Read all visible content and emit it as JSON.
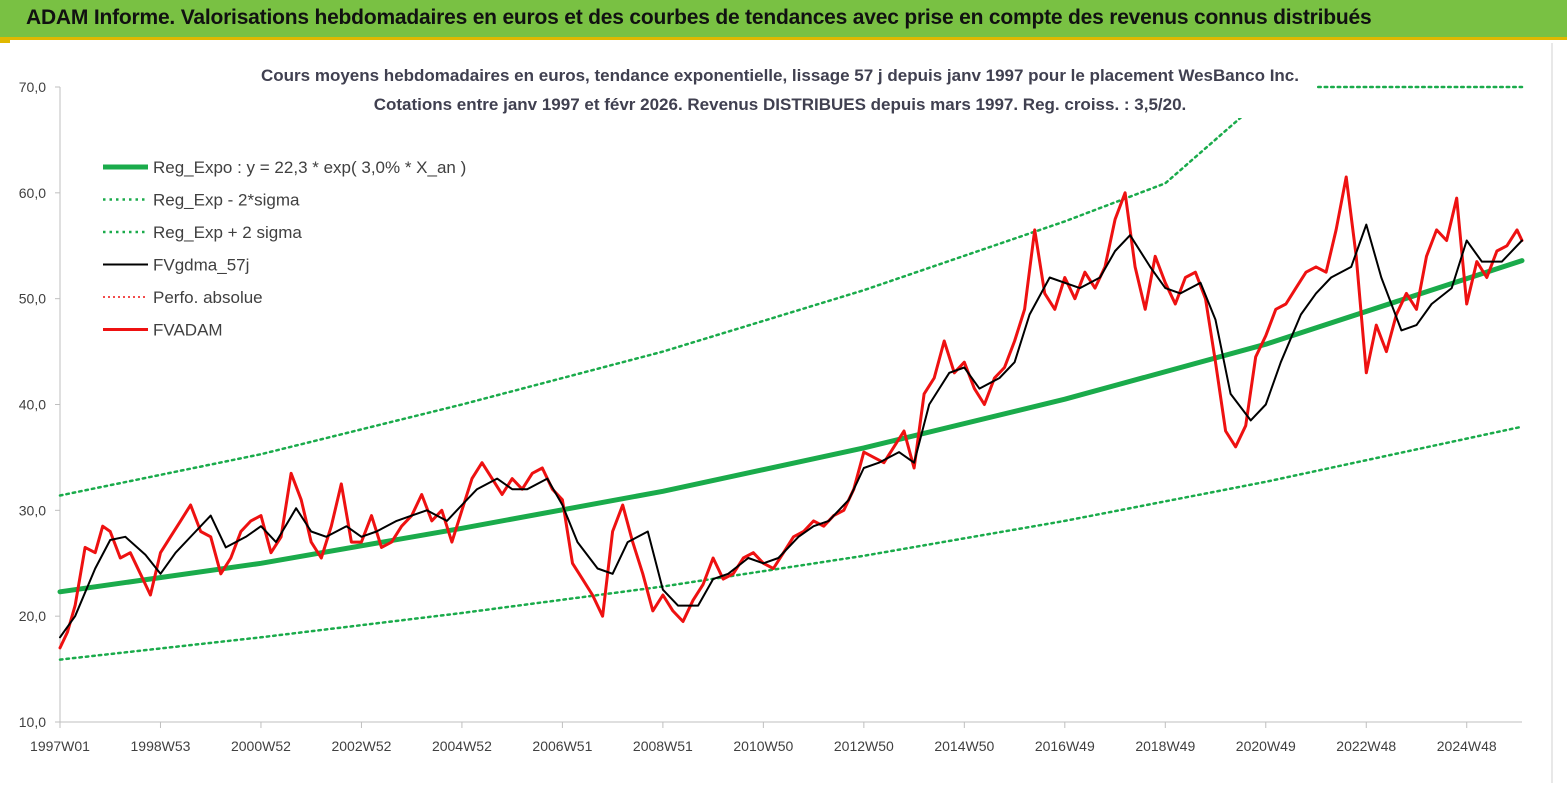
{
  "banner": {
    "title": "ADAM Informe. Valorisations hebdomadaires en euros et des courbes de tendances avec prise en compte des revenus connus distribués"
  },
  "colors": {
    "banner_bg": "#79c143",
    "trend": "#1aab4b",
    "band": "#1aab4b",
    "smooth": "#000000",
    "price": "#ee1111",
    "perf": "#ee1111"
  },
  "chart_data": {
    "type": "line",
    "title": "Cours moyens hebdomadaires en euros, tendance exponentielle, lissage 57 j depuis janv 1997 pour le placement WesBanco Inc.",
    "subtitle": "Cotations entre janv 1997 et févr 2026. Revenus DISTRIBUES depuis mars 1997. Reg. croiss. : 3,5/20.",
    "xlabel": "",
    "ylabel": "",
    "xlim": [
      1997.0,
      2026.1
    ],
    "ylim": [
      10,
      70
    ],
    "grid": false,
    "legend_position": "top-left",
    "y_ticks": [
      "10,0",
      "20,0",
      "30,0",
      "40,0",
      "50,0",
      "60,0",
      "70,0"
    ],
    "y_tick_values": [
      10,
      20,
      30,
      40,
      50,
      60,
      70
    ],
    "x_ticks": [
      "1997W01",
      "1998W53",
      "2000W52",
      "2002W52",
      "2004W52",
      "2006W51",
      "2008W51",
      "2010W50",
      "2012W50",
      "2014W50",
      "2016W49",
      "2018W49",
      "2020W49",
      "2022W48",
      "2024W48"
    ],
    "x_tick_values": [
      1997.0,
      1999.0,
      2001.0,
      2003.0,
      2005.0,
      2007.0,
      2009.0,
      2011.0,
      2013.0,
      2015.0,
      2017.0,
      2019.0,
      2021.0,
      2023.0,
      2025.0
    ],
    "series": [
      {
        "name": "Reg_Expo : y = 22,3 * exp( 3,0% *  X_an )",
        "style": "thick",
        "x": [
          1997.0,
          2001.0,
          2005.0,
          2009.0,
          2013.0,
          2017.0,
          2021.0,
          2026.1
        ],
        "y": [
          22.3,
          25.0,
          28.3,
          31.8,
          35.9,
          40.5,
          45.7,
          53.6
        ]
      },
      {
        "name": "Reg_Exp - 2*sigma",
        "style": "dotted",
        "x": [
          1997.0,
          2001.0,
          2005.0,
          2009.0,
          2013.0,
          2017.0,
          2021.0,
          2026.1
        ],
        "y": [
          15.9,
          18.0,
          20.3,
          22.8,
          25.7,
          29.0,
          32.7,
          37.9
        ]
      },
      {
        "name": "Reg_Exp + 2 sigma",
        "style": "dotted",
        "x": [
          1997.0,
          2001.0,
          2005.0,
          2009.0,
          2013.0,
          2017.0,
          2019.0,
          2021.2,
          2026.1
        ],
        "y": [
          31.4,
          35.3,
          40.0,
          45.0,
          50.8,
          57.3,
          60.9,
          70.0,
          70.0
        ]
      },
      {
        "name": "FVgdma_57j",
        "style": "solid",
        "x": [
          1997.0,
          1997.3,
          1997.7,
          1998.0,
          1998.3,
          1998.7,
          1999.0,
          1999.3,
          1999.7,
          2000.0,
          2000.3,
          2000.7,
          2001.0,
          2001.3,
          2001.7,
          2002.0,
          2002.3,
          2002.7,
          2003.0,
          2003.3,
          2003.7,
          2004.0,
          2004.3,
          2004.7,
          2005.0,
          2005.3,
          2005.7,
          2006.0,
          2006.3,
          2006.7,
          2007.0,
          2007.3,
          2007.7,
          2008.0,
          2008.3,
          2008.7,
          2009.0,
          2009.3,
          2009.7,
          2010.0,
          2010.3,
          2010.7,
          2011.0,
          2011.3,
          2011.7,
          2012.0,
          2012.3,
          2012.7,
          2013.0,
          2013.3,
          2013.7,
          2014.0,
          2014.3,
          2014.7,
          2015.0,
          2015.3,
          2015.7,
          2016.0,
          2016.3,
          2016.7,
          2017.0,
          2017.3,
          2017.7,
          2018.0,
          2018.3,
          2018.7,
          2019.0,
          2019.3,
          2019.7,
          2020.0,
          2020.3,
          2020.7,
          2021.0,
          2021.3,
          2021.7,
          2022.0,
          2022.3,
          2022.7,
          2023.0,
          2023.3,
          2023.7,
          2024.0,
          2024.3,
          2024.7,
          2025.0,
          2025.3,
          2025.7,
          2026.1
        ],
        "y": [
          18.0,
          20.0,
          24.5,
          27.2,
          27.5,
          25.8,
          24.0,
          26.0,
          28.0,
          29.5,
          26.5,
          27.5,
          28.5,
          27.0,
          30.2,
          28.0,
          27.5,
          28.5,
          27.5,
          28.0,
          29.0,
          29.5,
          30.0,
          29.0,
          30.5,
          32.0,
          33.0,
          32.0,
          32.0,
          33.0,
          30.5,
          27.0,
          24.5,
          24.0,
          27.0,
          28.0,
          22.5,
          21.0,
          21.0,
          23.5,
          24.0,
          25.5,
          25.0,
          25.5,
          27.5,
          28.5,
          29.0,
          31.0,
          34.0,
          34.5,
          35.5,
          34.5,
          40.0,
          43.0,
          43.5,
          41.5,
          42.5,
          44.0,
          48.5,
          52.0,
          51.5,
          51.0,
          52.0,
          54.5,
          56.0,
          53.0,
          51.0,
          50.5,
          51.5,
          48.0,
          41.0,
          38.5,
          40.0,
          44.0,
          48.5,
          50.5,
          52.0,
          53.0,
          57.0,
          52.0,
          47.0,
          47.5,
          49.5,
          51.0,
          55.5,
          53.5,
          53.5,
          55.5
        ]
      },
      {
        "name": "Perfo. absolue",
        "style": "dotted-thin",
        "x": [],
        "y": []
      },
      {
        "name": "FVADAM",
        "style": "solid-thick",
        "x": [
          1997.0,
          1997.15,
          1997.3,
          1997.5,
          1997.7,
          1997.85,
          1998.0,
          1998.2,
          1998.4,
          1998.6,
          1998.8,
          1999.0,
          1999.2,
          1999.4,
          1999.6,
          1999.8,
          2000.0,
          2000.2,
          2000.4,
          2000.6,
          2000.8,
          2001.0,
          2001.2,
          2001.4,
          2001.6,
          2001.8,
          2002.0,
          2002.2,
          2002.4,
          2002.6,
          2002.8,
          2003.0,
          2003.2,
          2003.4,
          2003.6,
          2003.8,
          2004.0,
          2004.2,
          2004.4,
          2004.6,
          2004.8,
          2005.0,
          2005.2,
          2005.4,
          2005.6,
          2005.8,
          2006.0,
          2006.2,
          2006.4,
          2006.6,
          2006.8,
          2007.0,
          2007.2,
          2007.4,
          2007.6,
          2007.8,
          2008.0,
          2008.2,
          2008.4,
          2008.6,
          2008.8,
          2009.0,
          2009.2,
          2009.4,
          2009.6,
          2009.8,
          2010.0,
          2010.2,
          2010.4,
          2010.6,
          2010.8,
          2011.0,
          2011.2,
          2011.4,
          2011.6,
          2011.8,
          2012.0,
          2012.2,
          2012.4,
          2012.6,
          2012.8,
          2013.0,
          2013.2,
          2013.4,
          2013.6,
          2013.8,
          2014.0,
          2014.2,
          2014.4,
          2014.6,
          2014.8,
          2015.0,
          2015.2,
          2015.4,
          2015.6,
          2015.8,
          2016.0,
          2016.2,
          2016.4,
          2016.6,
          2016.8,
          2017.0,
          2017.2,
          2017.4,
          2017.6,
          2017.8,
          2018.0,
          2018.2,
          2018.4,
          2018.6,
          2018.8,
          2019.0,
          2019.2,
          2019.4,
          2019.6,
          2019.8,
          2020.0,
          2020.2,
          2020.4,
          2020.6,
          2020.8,
          2021.0,
          2021.2,
          2021.4,
          2021.6,
          2021.8,
          2022.0,
          2022.2,
          2022.4,
          2022.6,
          2022.8,
          2023.0,
          2023.2,
          2023.4,
          2023.6,
          2023.8,
          2024.0,
          2024.2,
          2024.4,
          2024.6,
          2024.8,
          2025.0,
          2025.2,
          2025.4,
          2025.6,
          2025.8,
          2026.0,
          2026.1
        ],
        "y": [
          17.0,
          18.5,
          21.0,
          26.5,
          26.0,
          28.5,
          28.0,
          25.5,
          26.0,
          24.0,
          22.0,
          26.0,
          27.5,
          29.0,
          30.5,
          28.0,
          27.5,
          24.0,
          25.5,
          28.0,
          29.0,
          29.5,
          26.0,
          27.5,
          33.5,
          31.0,
          27.0,
          25.5,
          28.5,
          32.5,
          27.0,
          27.0,
          29.5,
          26.5,
          27.0,
          28.5,
          29.5,
          31.5,
          29.0,
          30.0,
          27.0,
          30.0,
          33.0,
          34.5,
          33.0,
          31.5,
          33.0,
          32.0,
          33.5,
          34.0,
          32.0,
          31.0,
          25.0,
          23.5,
          22.0,
          20.0,
          28.0,
          30.5,
          27.0,
          24.0,
          20.5,
          22.0,
          20.5,
          19.5,
          21.5,
          23.0,
          25.5,
          23.5,
          24.0,
          25.5,
          26.0,
          25.0,
          24.5,
          26.0,
          27.5,
          28.0,
          29.0,
          28.5,
          29.5,
          30.0,
          32.0,
          35.5,
          35.0,
          34.5,
          36.0,
          37.5,
          34.0,
          41.0,
          42.5,
          46.0,
          43.0,
          44.0,
          41.5,
          40.0,
          42.5,
          43.5,
          46.0,
          49.0,
          56.5,
          50.5,
          49.0,
          52.0,
          50.0,
          52.5,
          51.0,
          53.0,
          57.5,
          60.0,
          53.0,
          49.0,
          54.0,
          51.5,
          49.5,
          52.0,
          52.5,
          50.0,
          44.0,
          37.5,
          36.0,
          38.0,
          44.5,
          46.5,
          49.0,
          49.5,
          51.0,
          52.5,
          53.0,
          52.5,
          56.5,
          61.5,
          54.0,
          43.0,
          47.5,
          45.0,
          48.5,
          50.5,
          49.0,
          54.0,
          56.5,
          55.5,
          59.5,
          49.5,
          53.5,
          52.0,
          54.5,
          55.0,
          56.5,
          55.5
        ]
      }
    ]
  }
}
